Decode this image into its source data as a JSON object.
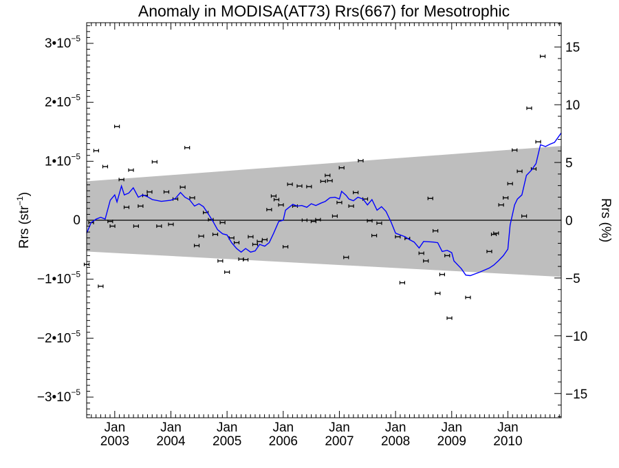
{
  "chart_data": {
    "type": "line",
    "title": "Anomaly in MODISA(AT73) Rrs(667) for Mesotrophic",
    "ylabel_left": {
      "base": "Rrs (str",
      "sup": "−1",
      "close": ")"
    },
    "ylabel_right": "Rrs (%)",
    "x_axis": {
      "range": [
        2002.5,
        2010.95
      ],
      "ticks": [
        {
          "x": 2003.0,
          "line1": "Jan",
          "line2": "2003"
        },
        {
          "x": 2004.0,
          "line1": "Jan",
          "line2": "2004"
        },
        {
          "x": 2005.0,
          "line1": "Jan",
          "line2": "2005"
        },
        {
          "x": 2006.0,
          "line1": "Jan",
          "line2": "2006"
        },
        {
          "x": 2007.0,
          "line1": "Jan",
          "line2": "2007"
        },
        {
          "x": 2008.0,
          "line1": "Jan",
          "line2": "2008"
        },
        {
          "x": 2009.0,
          "line1": "Jan",
          "line2": "2009"
        },
        {
          "x": 2010.0,
          "line1": "Jan",
          "line2": "2010"
        }
      ]
    },
    "y_axis_left": {
      "range": [
        -3.35e-05,
        3.35e-05
      ],
      "unit_scale": 1e-05,
      "ticks": [
        {
          "v": 3,
          "mantissa": "3•10",
          "exp": "−5"
        },
        {
          "v": 2,
          "mantissa": "2•10",
          "exp": "−5"
        },
        {
          "v": 1,
          "mantissa": "1•10",
          "exp": "−5"
        },
        {
          "v": 0,
          "mantissa": "0",
          "exp": ""
        },
        {
          "v": -1,
          "mantissa": "−1•10",
          "exp": "−5"
        },
        {
          "v": -2,
          "mantissa": "−2•10",
          "exp": "−5"
        },
        {
          "v": -3,
          "mantissa": "−3•10",
          "exp": "−5"
        }
      ]
    },
    "y_axis_right": {
      "range": [
        -17.1,
        17.1
      ],
      "ticks": [
        {
          "v": 15,
          "label": "15"
        },
        {
          "v": 10,
          "label": "10"
        },
        {
          "v": 5,
          "label": "5"
        },
        {
          "v": 0,
          "label": "0"
        },
        {
          "v": -5,
          "label": "−5"
        },
        {
          "v": -10,
          "label": "−10"
        },
        {
          "v": -15,
          "label": "−15"
        }
      ]
    },
    "zero_line": true,
    "band": {
      "description_color": "#bebebe",
      "upper": [
        [
          2002.5,
          6.6e-06
        ],
        [
          2010.95,
          1.26e-05
        ]
      ],
      "lower": [
        [
          2002.5,
          -5.3e-06
        ],
        [
          2010.95,
          -9.6e-06
        ]
      ]
    },
    "series": [
      {
        "color": "#0000ff",
        "values": [
          [
            2002.5,
            -2.2e-06
          ],
          [
            2002.58,
            -4e-07
          ],
          [
            2002.67,
            2e-07
          ],
          [
            2002.75,
            5e-07
          ],
          [
            2002.83,
            2e-07
          ],
          [
            2002.92,
            3.4e-06
          ],
          [
            2003.0,
            4.3e-06
          ],
          [
            2003.04,
            3.1e-06
          ],
          [
            2003.12,
            5.8e-06
          ],
          [
            2003.17,
            4.3e-06
          ],
          [
            2003.25,
            4.6e-06
          ],
          [
            2003.33,
            5.5e-06
          ],
          [
            2003.42,
            3.9e-06
          ],
          [
            2003.5,
            4.3e-06
          ],
          [
            2003.58,
            4e-06
          ],
          [
            2003.67,
            3.5e-06
          ],
          [
            2003.83,
            3.2e-06
          ],
          [
            2004.0,
            3.4e-06
          ],
          [
            2004.08,
            3.7e-06
          ],
          [
            2004.17,
            4.7e-06
          ],
          [
            2004.25,
            3.9e-06
          ],
          [
            2004.33,
            3.5e-06
          ],
          [
            2004.42,
            2.4e-06
          ],
          [
            2004.5,
            2.8e-06
          ],
          [
            2004.58,
            2.3e-06
          ],
          [
            2004.67,
            1e-06
          ],
          [
            2004.75,
            -2e-07
          ],
          [
            2004.83,
            -1.6e-06
          ],
          [
            2004.92,
            -2.3e-06
          ],
          [
            2005.0,
            -2.5e-06
          ],
          [
            2005.08,
            -3.8e-06
          ],
          [
            2005.17,
            -4.8e-06
          ],
          [
            2005.25,
            -5.4e-06
          ],
          [
            2005.33,
            -4.8e-06
          ],
          [
            2005.42,
            -5.4e-06
          ],
          [
            2005.5,
            -5.2e-06
          ],
          [
            2005.58,
            -4.1e-06
          ],
          [
            2005.67,
            -4.4e-06
          ],
          [
            2005.75,
            -3.8e-06
          ],
          [
            2005.83,
            -2.2e-06
          ],
          [
            2005.92,
            -2e-07
          ],
          [
            2006.0,
            0.0
          ],
          [
            2006.04,
            1.7e-06
          ],
          [
            2006.17,
            2.7e-06
          ],
          [
            2006.25,
            2.4e-06
          ],
          [
            2006.33,
            2.5e-06
          ],
          [
            2006.42,
            2.2e-06
          ],
          [
            2006.5,
            2.8e-06
          ],
          [
            2006.58,
            2.5e-06
          ],
          [
            2006.67,
            2.9e-06
          ],
          [
            2006.75,
            3.2e-06
          ],
          [
            2006.83,
            3.8e-06
          ],
          [
            2006.92,
            3.9e-06
          ],
          [
            2007.0,
            3.6e-06
          ],
          [
            2007.04,
            4.9e-06
          ],
          [
            2007.12,
            4.2e-06
          ],
          [
            2007.17,
            3.6e-06
          ],
          [
            2007.25,
            3.3e-06
          ],
          [
            2007.33,
            3.9e-06
          ],
          [
            2007.42,
            3.6e-06
          ],
          [
            2007.5,
            2.6e-06
          ],
          [
            2007.58,
            3.5e-06
          ],
          [
            2007.67,
            1.7e-06
          ],
          [
            2007.75,
            2.3e-06
          ],
          [
            2007.83,
            1.5e-06
          ],
          [
            2007.92,
            -3e-07
          ],
          [
            2008.0,
            -2.2e-06
          ],
          [
            2008.17,
            -2.8e-06
          ],
          [
            2008.25,
            -3.3e-06
          ],
          [
            2008.33,
            -3.7e-06
          ],
          [
            2008.42,
            -4.7e-06
          ],
          [
            2008.5,
            -3.6e-06
          ],
          [
            2008.67,
            -3.7e-06
          ],
          [
            2008.75,
            -3.8e-06
          ],
          [
            2008.83,
            -5.3e-06
          ],
          [
            2008.92,
            -5.1e-06
          ],
          [
            2009.0,
            -5.5e-06
          ],
          [
            2009.04,
            -6.9e-06
          ],
          [
            2009.17,
            -8.2e-06
          ],
          [
            2009.25,
            -9.3e-06
          ],
          [
            2009.33,
            -9.4e-06
          ],
          [
            2009.5,
            -8.8e-06
          ],
          [
            2009.67,
            -8.1e-06
          ],
          [
            2009.75,
            -7.6e-06
          ],
          [
            2009.83,
            -6.9e-06
          ],
          [
            2009.92,
            -6e-06
          ],
          [
            2010.0,
            -4.9e-06
          ],
          [
            2010.04,
            -8e-07
          ],
          [
            2010.12,
            2.6e-06
          ],
          [
            2010.17,
            3.6e-06
          ],
          [
            2010.25,
            4.3e-06
          ],
          [
            2010.33,
            7.6e-06
          ],
          [
            2010.42,
            8.5e-06
          ],
          [
            2010.5,
            9.6e-06
          ],
          [
            2010.58,
            1.28e-05
          ],
          [
            2010.67,
            1.25e-05
          ],
          [
            2010.75,
            1.29e-05
          ],
          [
            2010.83,
            1.32e-05
          ],
          [
            2010.95,
            1.48e-05
          ]
        ]
      },
      {
        "color": "#000000",
        "marker": "error-bar",
        "values": [
          [
            2002.5,
            -7.5e-06
          ],
          [
            2002.58,
            -4e-07
          ],
          [
            2002.67,
            1.18e-05
          ],
          [
            2002.75,
            -1.12e-05
          ],
          [
            2002.83,
            9.1e-06
          ],
          [
            2002.92,
            -2e-07
          ],
          [
            2002.96,
            -1e-06
          ],
          [
            2003.04,
            1.59e-05
          ],
          [
            2003.12,
            6.9e-06
          ],
          [
            2003.21,
            2.2e-06
          ],
          [
            2003.29,
            8.5e-06
          ],
          [
            2003.38,
            -1e-06
          ],
          [
            2003.46,
            2.4e-06
          ],
          [
            2003.54,
            4.2e-06
          ],
          [
            2003.62,
            4.8e-06
          ],
          [
            2003.71,
            9.9e-06
          ],
          [
            2003.79,
            -1e-06
          ],
          [
            2003.92,
            4.8e-06
          ],
          [
            2004.0,
            -7e-07
          ],
          [
            2004.08,
            3.6e-06
          ],
          [
            2004.21,
            5.6e-06
          ],
          [
            2004.29,
            1.23e-05
          ],
          [
            2004.38,
            3.8e-06
          ],
          [
            2004.46,
            -4.3e-06
          ],
          [
            2004.54,
            -2.7e-06
          ],
          [
            2004.62,
            1.3e-06
          ],
          [
            2004.71,
            1e-07
          ],
          [
            2004.79,
            -2.4e-06
          ],
          [
            2004.88,
            -6.9e-06
          ],
          [
            2004.92,
            -4e-07
          ],
          [
            2005.0,
            -8.8e-06
          ],
          [
            2005.08,
            -3e-06
          ],
          [
            2005.17,
            -3.8e-06
          ],
          [
            2005.25,
            -6.6e-06
          ],
          [
            2005.33,
            -6.7e-06
          ],
          [
            2005.42,
            -2.8e-06
          ],
          [
            2005.5,
            -4.1e-06
          ],
          [
            2005.58,
            -3.6e-06
          ],
          [
            2005.67,
            -3.3e-06
          ],
          [
            2005.75,
            1.8e-06
          ],
          [
            2005.83,
            4.1e-06
          ],
          [
            2005.88,
            3.5e-06
          ],
          [
            2005.96,
            2.6e-06
          ],
          [
            2006.04,
            -4.5e-06
          ],
          [
            2006.12,
            6.1e-06
          ],
          [
            2006.21,
            2.4e-06
          ],
          [
            2006.29,
            5.8e-06
          ],
          [
            2006.38,
            0.0
          ],
          [
            2006.46,
            5.7e-06
          ],
          [
            2006.54,
            -2e-07
          ],
          [
            2006.62,
            1e-07
          ],
          [
            2006.71,
            6.6e-06
          ],
          [
            2006.79,
            7.6e-06
          ],
          [
            2006.83,
            6.7e-06
          ],
          [
            2006.92,
            7e-07
          ],
          [
            2007.0,
            3e-06
          ],
          [
            2007.04,
            8.9e-06
          ],
          [
            2007.12,
            -6.3e-06
          ],
          [
            2007.21,
            2.4e-06
          ],
          [
            2007.29,
            4.7e-06
          ],
          [
            2007.38,
            1.01e-05
          ],
          [
            2007.46,
            3.6e-06
          ],
          [
            2007.54,
            -1e-07
          ],
          [
            2007.62,
            -2.6e-06
          ],
          [
            2007.71,
            -5e-07
          ],
          [
            2008.04,
            -2.8e-06
          ],
          [
            2008.12,
            -1.06e-05
          ],
          [
            2008.21,
            -3.1e-06
          ],
          [
            2008.46,
            -5.6e-06
          ],
          [
            2008.54,
            -6.9e-06
          ],
          [
            2008.62,
            3.7e-06
          ],
          [
            2008.71,
            -1.8e-06
          ],
          [
            2008.75,
            -1.24e-05
          ],
          [
            2008.83,
            -9.2e-06
          ],
          [
            2008.92,
            -6e-06
          ],
          [
            2008.96,
            -1.66e-05
          ],
          [
            2009.29,
            -1.31e-05
          ],
          [
            2009.67,
            -5.3e-06
          ],
          [
            2009.75,
            -2.4e-06
          ],
          [
            2009.79,
            -2.2e-06
          ],
          [
            2009.88,
            2.6e-06
          ],
          [
            2009.96,
            3.8e-06
          ],
          [
            2010.04,
            6.2e-06
          ],
          [
            2010.12,
            1.19e-05
          ],
          [
            2010.21,
            8.3e-06
          ],
          [
            2010.29,
            7e-07
          ],
          [
            2010.38,
            1.9e-05
          ],
          [
            2010.46,
            8.7e-06
          ],
          [
            2010.54,
            1.33e-05
          ],
          [
            2010.62,
            2.78e-05
          ]
        ]
      }
    ]
  }
}
